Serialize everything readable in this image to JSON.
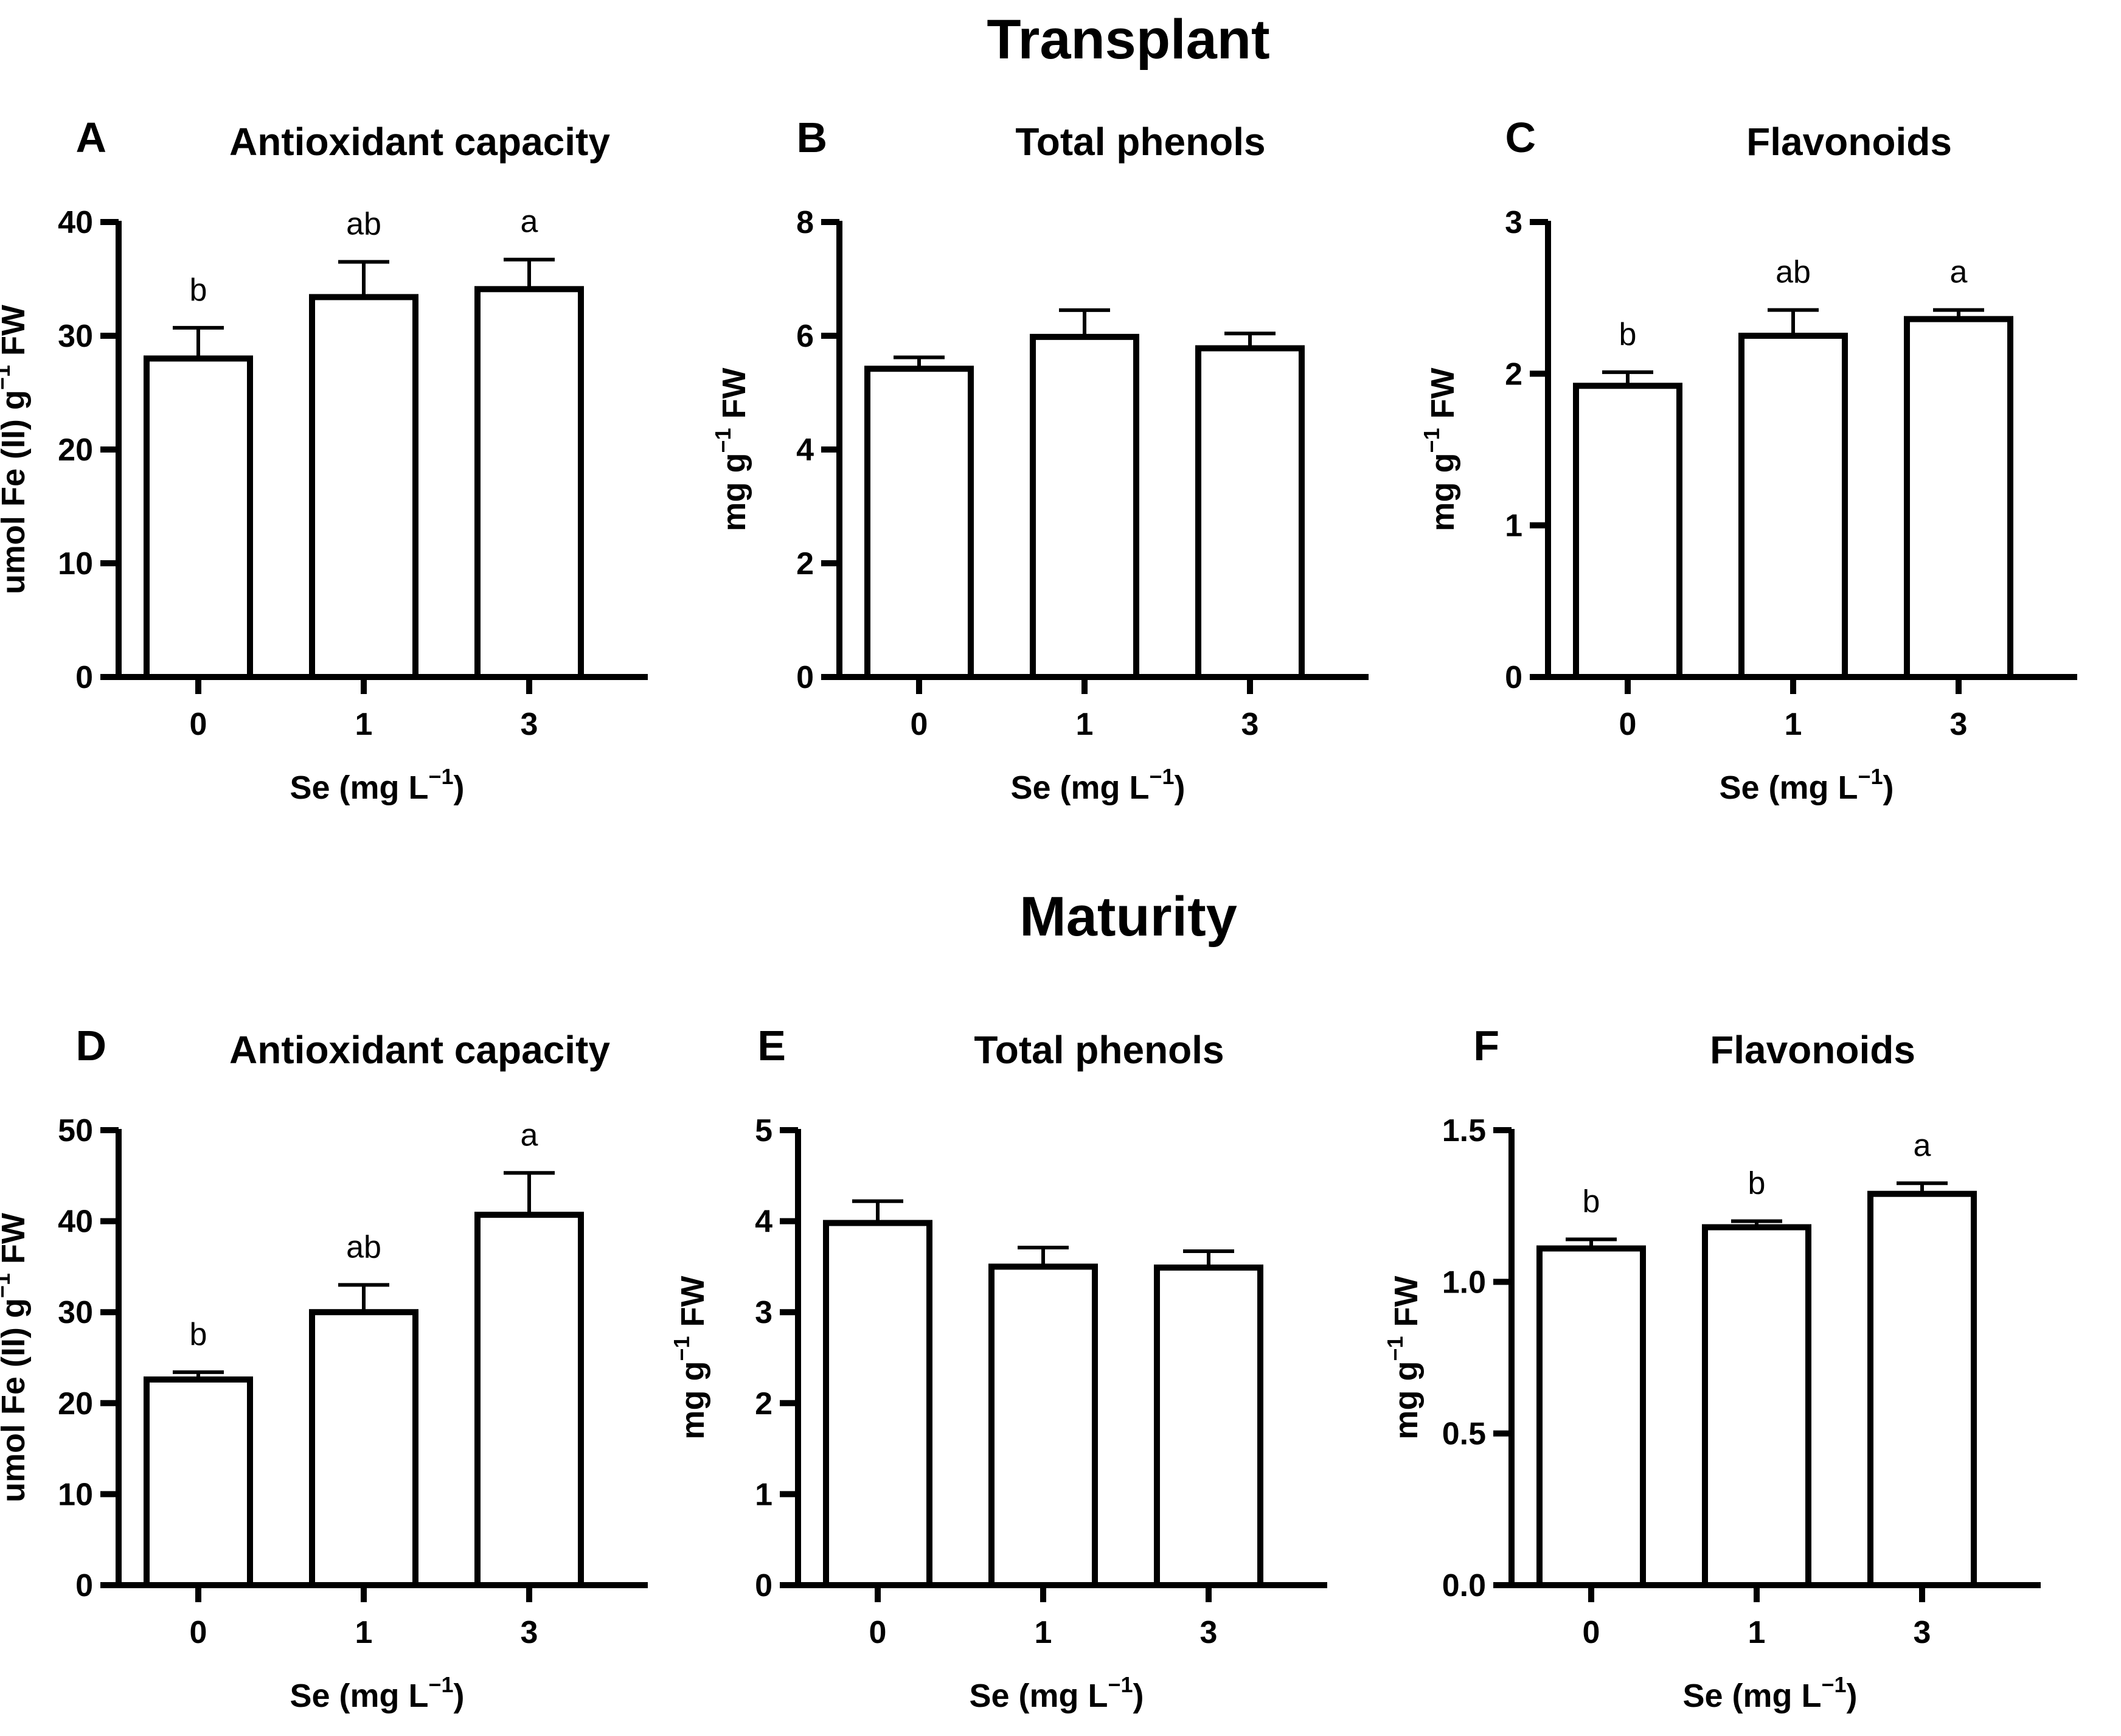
{
  "sections": [
    {
      "title": "Transplant"
    },
    {
      "title": "Maturity"
    }
  ],
  "chart_data": [
    {
      "type": "bar",
      "letter": "A",
      "title": "Antioxidant capacity",
      "categories": [
        "0",
        "1",
        "3"
      ],
      "values": [
        28.0,
        33.4,
        34.1
      ],
      "errors": [
        2.7,
        3.1,
        2.6
      ],
      "significance": [
        "b",
        "ab",
        "a"
      ],
      "ylim": [
        0,
        40
      ],
      "yticks": [
        "0",
        "10",
        "20",
        "30",
        "40"
      ],
      "ylabel_main": "umol Fe (II) g",
      "ylabel_sup": "−1",
      "ylabel_tail": " FW",
      "xlabel_main": "Se (mg L",
      "xlabel_sup": "−1",
      "xlabel_tail": ")"
    },
    {
      "type": "bar",
      "letter": "B",
      "title": "Total phenols",
      "categories": [
        "0",
        "1",
        "3"
      ],
      "values": [
        5.42,
        5.98,
        5.78
      ],
      "errors": [
        0.2,
        0.47,
        0.26
      ],
      "significance": [
        "",
        "",
        ""
      ],
      "ylim": [
        0,
        8
      ],
      "yticks": [
        "0",
        "2",
        "4",
        "6",
        "8"
      ],
      "ylabel_main": "mg g",
      "ylabel_sup": "−1",
      "ylabel_tail": " FW",
      "xlabel_main": "Se (mg L",
      "xlabel_sup": "−1",
      "xlabel_tail": ")"
    },
    {
      "type": "bar",
      "letter": "C",
      "title": "Flavonoids",
      "categories": [
        "0",
        "1",
        "3"
      ],
      "values": [
        1.92,
        2.25,
        2.36
      ],
      "errors": [
        0.09,
        0.17,
        0.06
      ],
      "significance": [
        "b",
        "ab",
        "a"
      ],
      "ylim": [
        0,
        3
      ],
      "yticks": [
        "0",
        "1",
        "2",
        "3"
      ],
      "ylabel_main": "mg g",
      "ylabel_sup": "−1",
      "ylabel_tail": " FW",
      "xlabel_main": "Se (mg L",
      "xlabel_sup": "−1",
      "xlabel_tail": ")"
    },
    {
      "type": "bar",
      "letter": "D",
      "title": "Antioxidant capacity",
      "categories": [
        "0",
        "1",
        "3"
      ],
      "values": [
        22.6,
        30.0,
        40.7
      ],
      "errors": [
        0.8,
        3.0,
        4.6
      ],
      "significance": [
        "b",
        "ab",
        "a"
      ],
      "ylim": [
        0,
        50
      ],
      "yticks": [
        "0",
        "10",
        "20",
        "30",
        "40",
        "50"
      ],
      "ylabel_main": "umol Fe (II) g",
      "ylabel_sup": "−1",
      "ylabel_tail": " FW",
      "xlabel_main": "Se (mg L",
      "xlabel_sup": "−1",
      "xlabel_tail": ")"
    },
    {
      "type": "bar",
      "letter": "E",
      "title": "Total phenols",
      "categories": [
        "0",
        "1",
        "3"
      ],
      "values": [
        3.98,
        3.5,
        3.49
      ],
      "errors": [
        0.24,
        0.21,
        0.18
      ],
      "significance": [
        "",
        "",
        ""
      ],
      "ylim": [
        0,
        5
      ],
      "yticks": [
        "0",
        "1",
        "2",
        "3",
        "4",
        "5"
      ],
      "ylabel_main": "mg g",
      "ylabel_sup": "−1",
      "ylabel_tail": " FW",
      "xlabel_main": "Se (mg L",
      "xlabel_sup": "−1",
      "xlabel_tail": ")"
    },
    {
      "type": "bar",
      "letter": "F",
      "title": "Flavonoids",
      "categories": [
        "0",
        "1",
        "3"
      ],
      "values": [
        1.11,
        1.18,
        1.29
      ],
      "errors": [
        0.03,
        0.02,
        0.035
      ],
      "significance": [
        "b",
        "b",
        "a"
      ],
      "ylim": [
        0,
        1.5
      ],
      "yticks": [
        "0.0",
        "0.5",
        "1.0",
        "1.5"
      ],
      "ylabel_main": "mg g",
      "ylabel_sup": "−1",
      "ylabel_tail": " FW",
      "xlabel_main": "Se (mg L",
      "xlabel_sup": "−1",
      "xlabel_tail": ")"
    }
  ]
}
